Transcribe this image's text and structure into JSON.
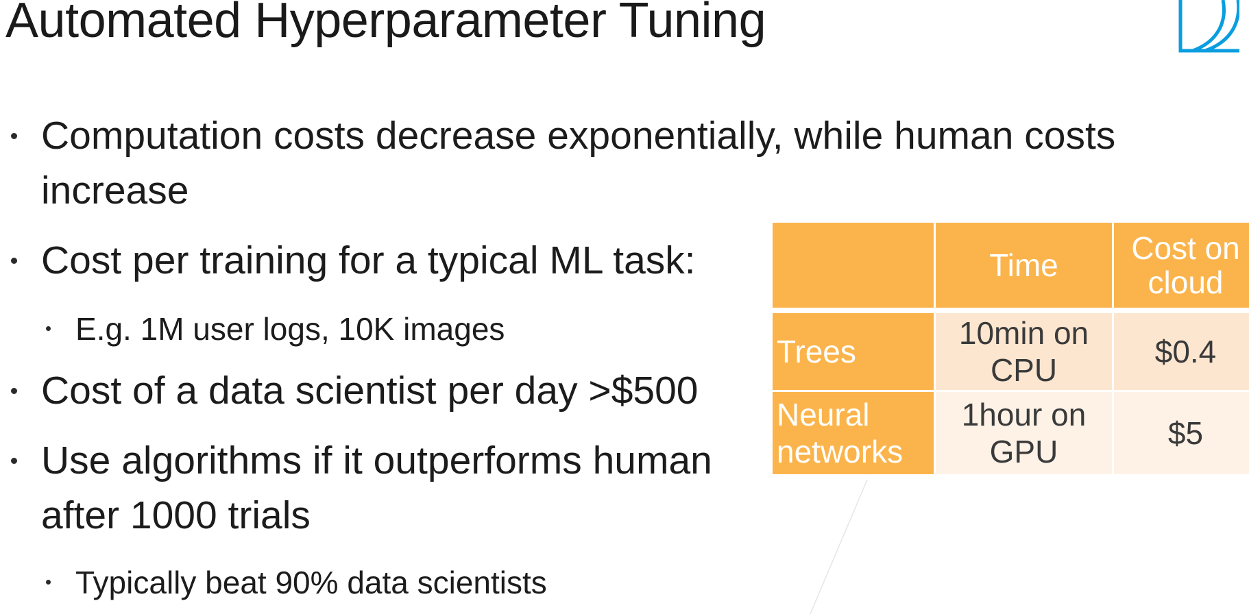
{
  "slide": {
    "title": "Automated Hyperparameter Tuning",
    "logo_icon": "bracket-logo-icon",
    "accent_color": "#0a9ee0",
    "table_header_color": "#fbb44b"
  },
  "bullets": [
    {
      "level": 1,
      "lines": [
        "Computation costs decrease exponentially, while human costs",
        "increase"
      ]
    },
    {
      "level": 1,
      "lines": [
        "Cost per training for a typical ML task:"
      ]
    },
    {
      "level": 2,
      "lines": [
        "E.g. 1M user logs, 10K images"
      ]
    },
    {
      "level": 1,
      "lines": [
        "Cost of a data scientist per day >$500"
      ]
    },
    {
      "level": 1,
      "lines": [
        "Use algorithms if it outperforms human",
        "after 1000 trials"
      ]
    },
    {
      "level": 2,
      "lines": [
        "Typically beat 90% data scientists"
      ]
    }
  ],
  "table": {
    "headers": [
      "",
      "Time",
      "Cost on cloud"
    ],
    "header_lines": {
      "time": [
        "Time"
      ],
      "cost": [
        "Cost on",
        "cloud"
      ]
    },
    "rows": [
      {
        "label_lines": [
          "Trees"
        ],
        "time_lines": [
          "10min on",
          "CPU"
        ],
        "cost": "$0.4"
      },
      {
        "label_lines": [
          "Neural",
          "networks"
        ],
        "time_lines": [
          "1hour on",
          "GPU"
        ],
        "cost": "$5"
      }
    ]
  }
}
